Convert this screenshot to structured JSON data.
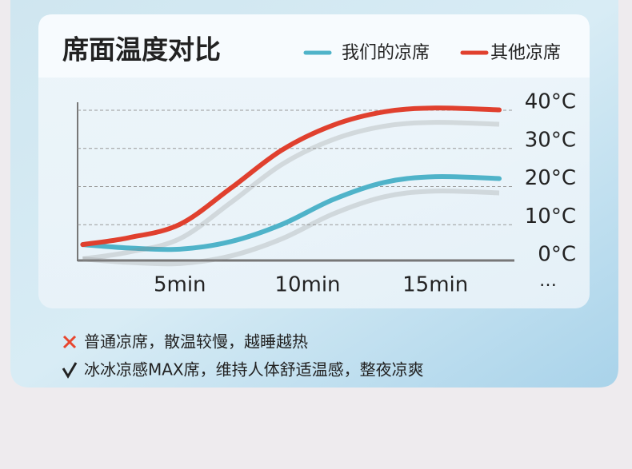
{
  "chart_data": {
    "type": "line",
    "title": "席面温度对比",
    "x": [
      1.2,
      3,
      5,
      7,
      9,
      11,
      13,
      15,
      17.5
    ],
    "xlim": [
      1,
      18
    ],
    "xticks": [
      {
        "value": 5,
        "label": "5min"
      },
      {
        "value": 10,
        "label": "10min"
      },
      {
        "value": 15,
        "label": "15min"
      }
    ],
    "x_more_label": "…",
    "ylim": [
      0,
      40
    ],
    "yticks": [
      {
        "value": 0,
        "label": "0°C"
      },
      {
        "value": 10,
        "label": "10°C"
      },
      {
        "value": 20,
        "label": "20°C"
      },
      {
        "value": 30,
        "label": "30°C"
      },
      {
        "value": 40,
        "label": "40°C"
      }
    ],
    "grid": true,
    "series": [
      {
        "name": "我们的凉席",
        "color": "#4fb3c9",
        "values": [
          2.7,
          1.8,
          1.5,
          3.5,
          8,
          14.5,
          19,
          20.5,
          20
        ]
      },
      {
        "name": "其他凉席",
        "color": "#e0402e",
        "values": [
          2.7,
          4.5,
          8,
          17.5,
          27.5,
          34,
          37.5,
          38.5,
          38
        ]
      }
    ],
    "notes": [
      "普通凉席，散温较慢，越睡越热",
      "冰冰凉感MAX席，维持人体舒适温感，整夜凉爽"
    ]
  }
}
